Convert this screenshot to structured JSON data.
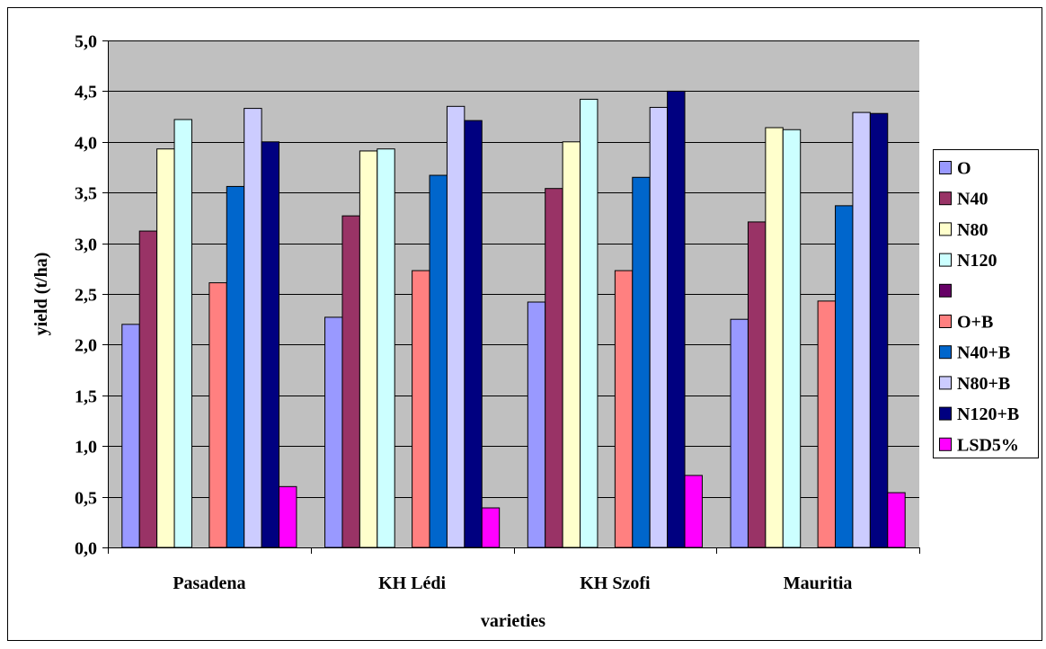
{
  "chart_data": {
    "type": "bar",
    "title": "",
    "xlabel": "varieties",
    "ylabel": "yield  (t/ha)",
    "ylim": [
      0,
      5
    ],
    "yticks": [
      "0,0",
      "0,5",
      "1,0",
      "1,5",
      "2,0",
      "2,5",
      "3,0",
      "3,5",
      "4,0",
      "4,5",
      "5,0"
    ],
    "grid": true,
    "legend_position": "right",
    "categories": [
      "Pasadena",
      "KH Lédi",
      "KH Szofi",
      "Mauritia"
    ],
    "series": [
      {
        "name": "O",
        "color": "#9999ff",
        "values": [
          2.2,
          2.27,
          2.42,
          2.25
        ]
      },
      {
        "name": "N40",
        "color": "#993366",
        "values": [
          3.12,
          3.27,
          3.54,
          3.21
        ]
      },
      {
        "name": "N80",
        "color": "#ffffcc",
        "values": [
          3.93,
          3.91,
          4.0,
          4.14
        ]
      },
      {
        "name": "N120",
        "color": "#ccffff",
        "values": [
          4.22,
          3.93,
          4.42,
          4.12
        ]
      },
      {
        "name": "",
        "color": "#660066",
        "values": [
          0,
          0,
          0,
          0
        ]
      },
      {
        "name": "O+B",
        "color": "#ff8080",
        "values": [
          2.61,
          2.73,
          2.73,
          2.43
        ]
      },
      {
        "name": "N40+B",
        "color": "#0066cc",
        "values": [
          3.56,
          3.67,
          3.65,
          3.37
        ]
      },
      {
        "name": "N80+B",
        "color": "#ccccff",
        "values": [
          4.33,
          4.35,
          4.34,
          4.29
        ]
      },
      {
        "name": "N120+B",
        "color": "#000080",
        "values": [
          4.0,
          4.21,
          4.5,
          4.28
        ]
      },
      {
        "name": "LSD5%",
        "color": "#ff00ff",
        "values": [
          0.6,
          0.39,
          0.71,
          0.54
        ]
      }
    ]
  }
}
